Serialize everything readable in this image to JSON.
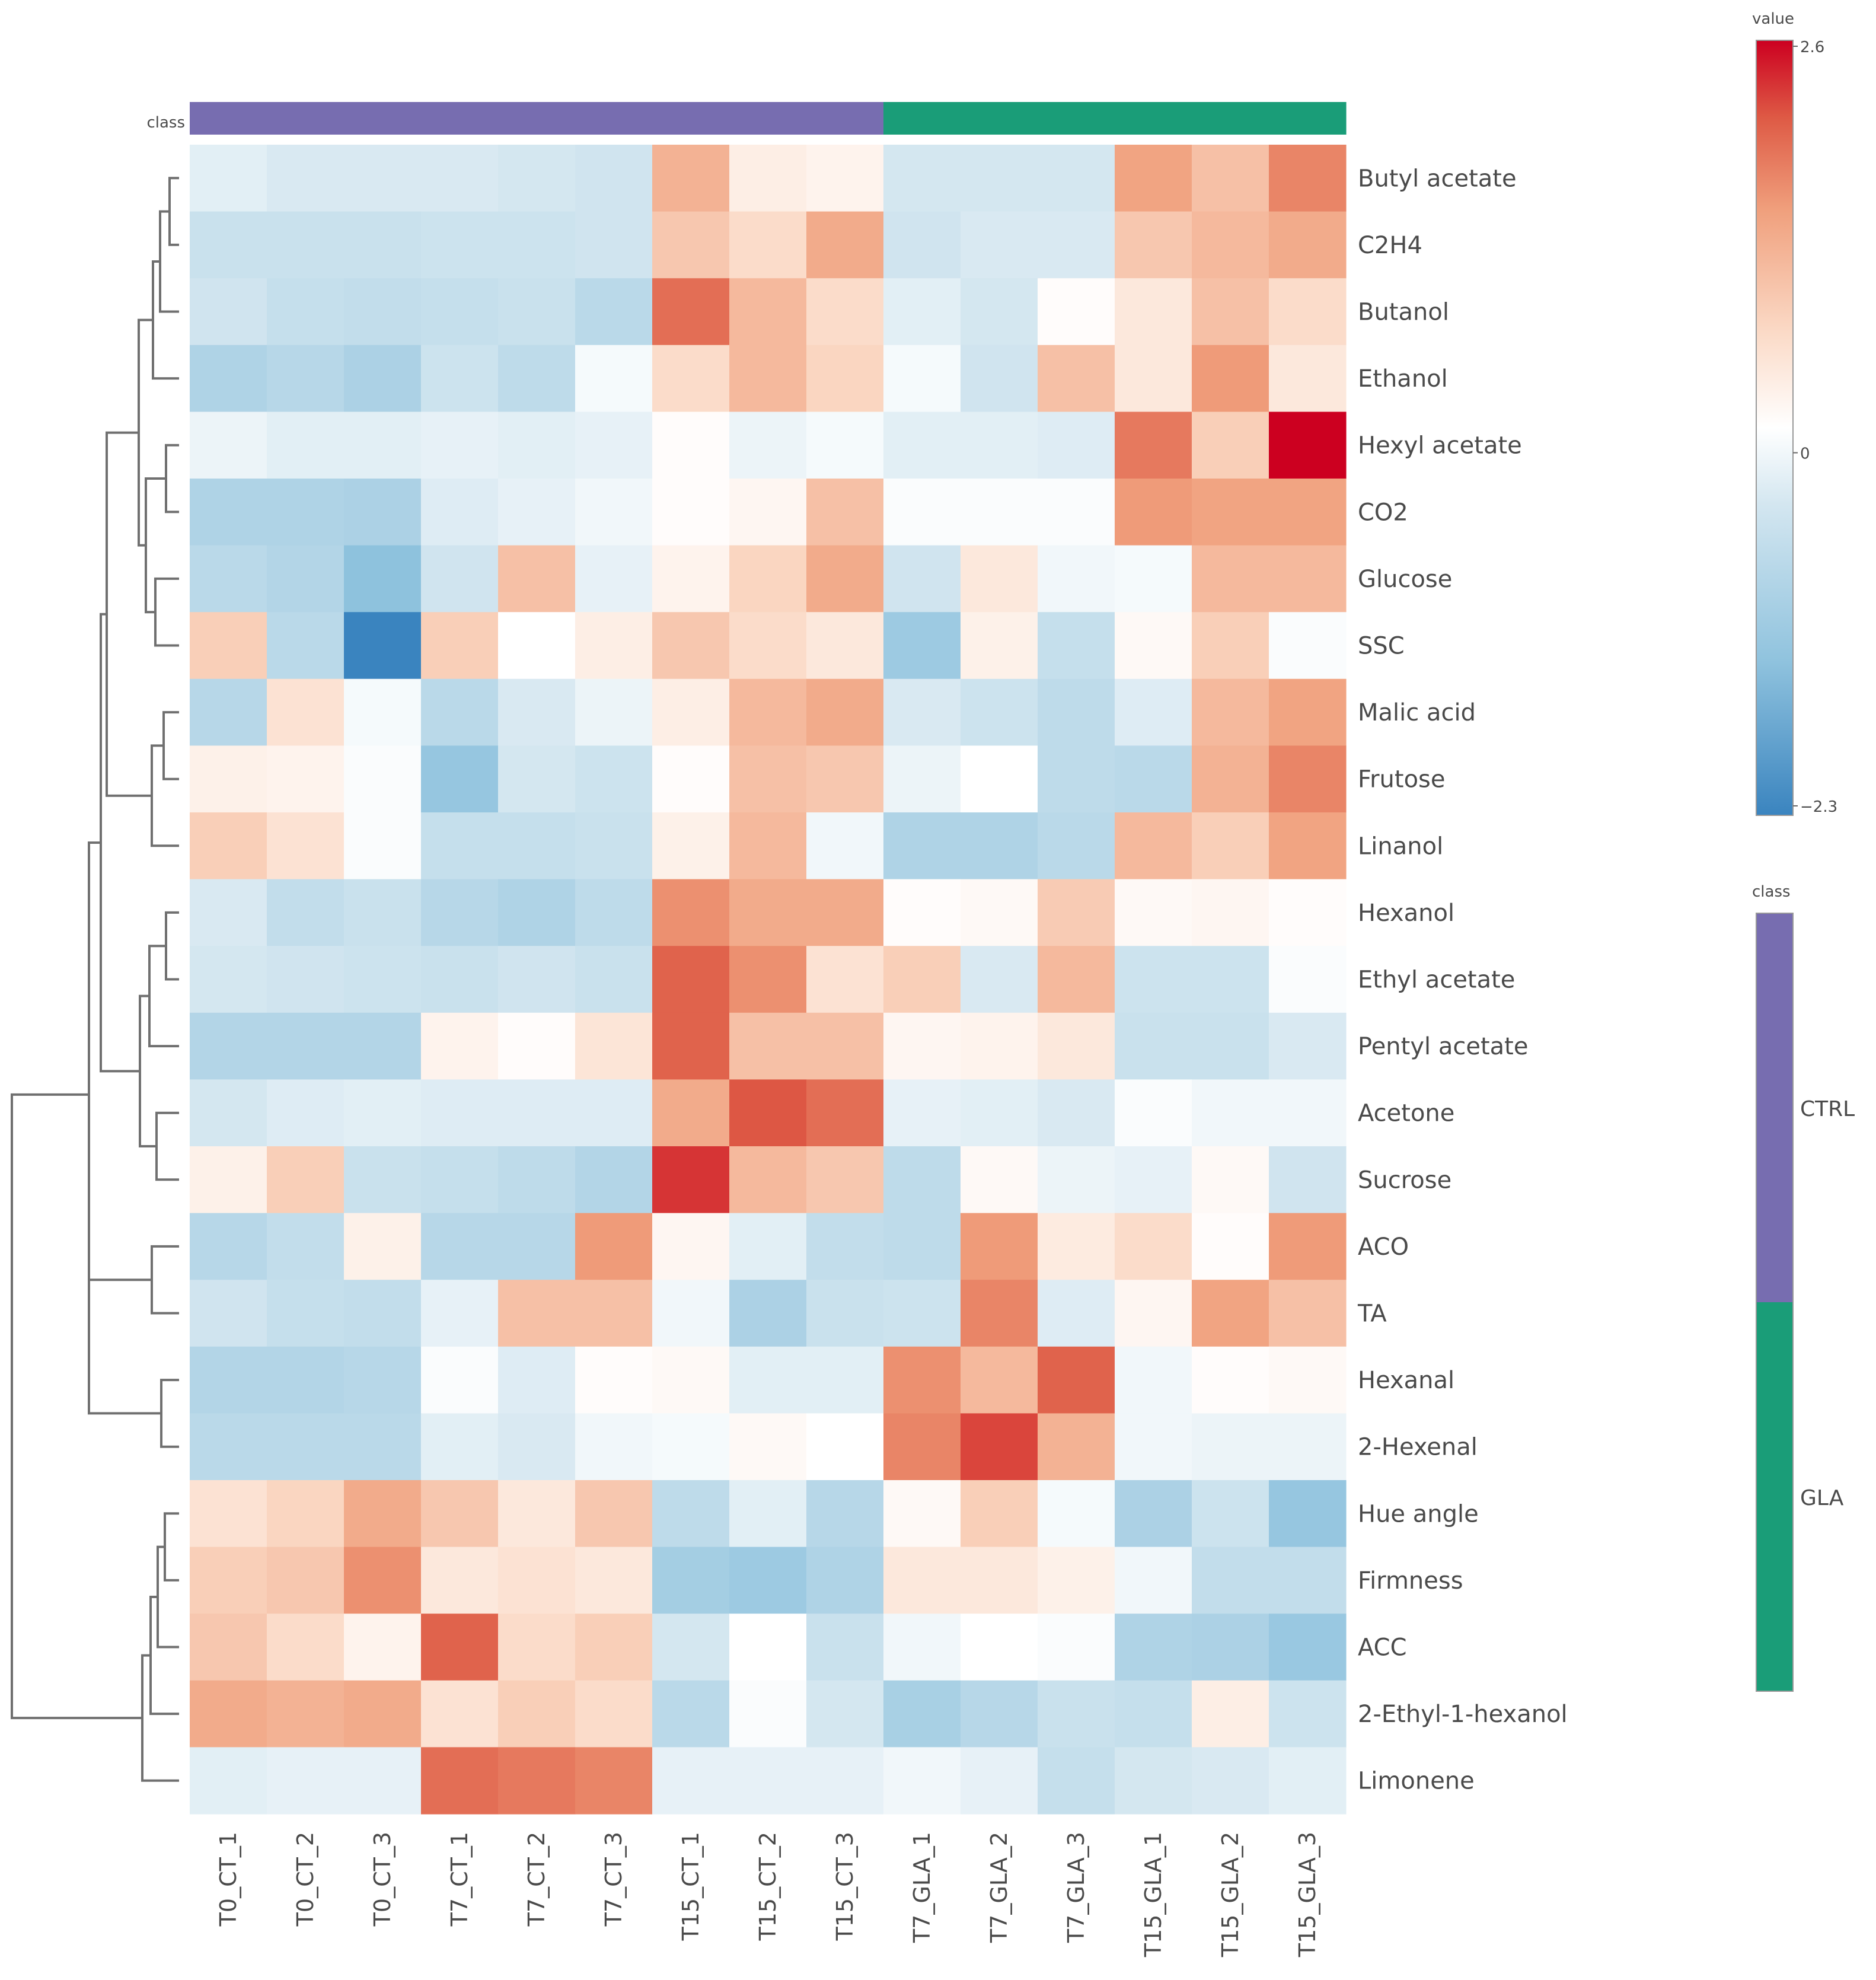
{
  "chart_data": {
    "type": "heatmap",
    "title": "",
    "columns": [
      "T0_CT_1",
      "T0_CT_2",
      "T0_CT_3",
      "T7_CT_1",
      "T7_CT_2",
      "T7_CT_3",
      "T15_CT_1",
      "T15_CT_2",
      "T15_CT_3",
      "T7_GLA_1",
      "T7_GLA_2",
      "T7_GLA_3",
      "T15_GLA_1",
      "T15_GLA_2",
      "T15_GLA_3"
    ],
    "rows": [
      "Butyl acetate",
      "C2H4",
      "Butanol",
      "Ethanol",
      "Hexyl acetate",
      "CO2",
      "Glucose",
      "SSC",
      "Malic acid",
      "Frutose",
      "Linanol",
      "Hexanol",
      "Ethyl acetate",
      "Pentyl acetate",
      "Acetone",
      "Sucrose",
      "ACO",
      "TA",
      "Hexanal",
      "2-Hexenal",
      "Hue angle",
      "Firmness",
      "ACC",
      "2-Ethyl-1-hexanol",
      "Limonene"
    ],
    "values": [
      [
        -0.3,
        -0.4,
        -0.4,
        -0.4,
        -0.45,
        -0.5,
        1.2,
        0.3,
        0.2,
        -0.45,
        -0.45,
        -0.45,
        1.4,
        1.0,
        1.7
      ],
      [
        -0.6,
        -0.6,
        -0.6,
        -0.55,
        -0.55,
        -0.5,
        0.9,
        0.6,
        1.3,
        -0.5,
        -0.4,
        -0.4,
        0.9,
        1.1,
        1.3
      ],
      [
        -0.5,
        -0.65,
        -0.7,
        -0.65,
        -0.6,
        -0.8,
        1.9,
        1.1,
        0.6,
        -0.3,
        -0.45,
        0.05,
        0.4,
        1.0,
        0.6
      ],
      [
        -0.95,
        -0.85,
        -1.0,
        -0.55,
        -0.75,
        -0.1,
        0.6,
        1.1,
        0.7,
        -0.1,
        -0.5,
        1.0,
        0.4,
        1.5,
        0.4
      ],
      [
        -0.2,
        -0.3,
        -0.3,
        -0.25,
        -0.3,
        -0.25,
        0.05,
        -0.2,
        -0.1,
        -0.3,
        -0.3,
        -0.35,
        1.8,
        0.8,
        2.6
      ],
      [
        -0.95,
        -0.95,
        -1.0,
        -0.35,
        -0.25,
        -0.15,
        0.05,
        0.15,
        1.0,
        -0.05,
        -0.05,
        -0.05,
        1.5,
        1.4,
        1.4
      ],
      [
        -0.8,
        -0.9,
        -1.4,
        -0.5,
        1.0,
        -0.25,
        0.2,
        0.7,
        1.3,
        -0.5,
        0.4,
        -0.15,
        -0.1,
        1.1,
        1.1
      ],
      [
        0.8,
        -0.8,
        -2.3,
        0.8,
        0.0,
        0.3,
        0.9,
        0.6,
        0.4,
        -1.2,
        0.25,
        -0.65,
        0.1,
        0.8,
        -0.05
      ],
      [
        -0.85,
        0.5,
        -0.1,
        -0.8,
        -0.4,
        -0.2,
        0.3,
        1.1,
        1.3,
        -0.4,
        -0.55,
        -0.75,
        -0.35,
        1.1,
        1.4
      ],
      [
        0.25,
        0.2,
        -0.05,
        -1.3,
        -0.45,
        -0.55,
        0.05,
        1.0,
        0.9,
        -0.2,
        0.0,
        -0.75,
        -0.8,
        1.2,
        1.7
      ],
      [
        0.8,
        0.5,
        -0.05,
        -0.65,
        -0.65,
        -0.6,
        0.25,
        1.1,
        -0.15,
        -0.95,
        -0.95,
        -0.8,
        1.1,
        0.8,
        1.4
      ],
      [
        -0.4,
        -0.7,
        -0.6,
        -0.85,
        -0.95,
        -0.75,
        1.6,
        1.3,
        1.3,
        0.05,
        0.1,
        0.85,
        0.1,
        0.15,
        0.05
      ],
      [
        -0.45,
        -0.5,
        -0.55,
        -0.6,
        -0.5,
        -0.6,
        2.0,
        1.6,
        0.5,
        0.8,
        -0.4,
        1.1,
        -0.55,
        -0.55,
        -0.05
      ],
      [
        -0.9,
        -0.9,
        -0.9,
        0.2,
        0.05,
        0.45,
        2.0,
        1.0,
        1.0,
        0.15,
        0.2,
        0.4,
        -0.6,
        -0.6,
        -0.4
      ],
      [
        -0.45,
        -0.35,
        -0.3,
        -0.35,
        -0.35,
        -0.35,
        1.3,
        2.1,
        1.9,
        -0.25,
        -0.3,
        -0.4,
        -0.05,
        -0.15,
        -0.15
      ],
      [
        0.25,
        0.8,
        -0.6,
        -0.65,
        -0.75,
        -0.9,
        2.3,
        1.1,
        0.9,
        -0.75,
        0.1,
        -0.2,
        -0.25,
        0.1,
        -0.5
      ],
      [
        -0.85,
        -0.7,
        0.25,
        -0.85,
        -0.85,
        1.5,
        0.15,
        -0.3,
        -0.7,
        -0.75,
        1.5,
        0.35,
        0.6,
        0.05,
        1.5
      ],
      [
        -0.5,
        -0.65,
        -0.7,
        -0.25,
        1.0,
        1.0,
        -0.15,
        -1.0,
        -0.6,
        -0.55,
        1.7,
        -0.35,
        0.15,
        1.4,
        1.0
      ],
      [
        -0.9,
        -0.9,
        -0.85,
        -0.05,
        -0.35,
        0.05,
        0.1,
        -0.3,
        -0.3,
        1.6,
        1.1,
        2.0,
        -0.15,
        0.05,
        0.1
      ],
      [
        -0.8,
        -0.8,
        -0.8,
        -0.3,
        -0.4,
        -0.15,
        -0.1,
        0.1,
        0.0,
        1.7,
        2.2,
        1.2,
        -0.15,
        -0.2,
        -0.2
      ],
      [
        0.5,
        0.7,
        1.3,
        0.9,
        0.4,
        0.9,
        -0.75,
        -0.3,
        -0.85,
        0.1,
        0.8,
        -0.1,
        -1.0,
        -0.55,
        -1.3
      ],
      [
        0.8,
        0.9,
        1.6,
        0.4,
        0.5,
        0.4,
        -1.1,
        -1.2,
        -0.95,
        0.4,
        0.4,
        0.25,
        -0.15,
        -0.7,
        -0.7
      ],
      [
        0.9,
        0.6,
        0.2,
        2.0,
        0.6,
        0.8,
        -0.45,
        0.0,
        -0.6,
        -0.15,
        0.0,
        -0.05,
        -0.95,
        -1.0,
        -1.25
      ],
      [
        1.3,
        1.2,
        1.3,
        0.5,
        0.8,
        0.6,
        -0.8,
        -0.05,
        -0.45,
        -1.05,
        -0.85,
        -0.6,
        -0.65,
        0.3,
        -0.55
      ],
      [
        -0.3,
        -0.25,
        -0.25,
        1.9,
        1.8,
        1.7,
        -0.25,
        -0.25,
        -0.25,
        -0.15,
        -0.25,
        -0.65,
        -0.45,
        -0.4,
        -0.3
      ]
    ],
    "column_classes": [
      "CTRL",
      "CTRL",
      "CTRL",
      "CTRL",
      "CTRL",
      "CTRL",
      "CTRL",
      "CTRL",
      "CTRL",
      "GLA",
      "GLA",
      "GLA",
      "GLA",
      "GLA",
      "GLA"
    ],
    "class_bar_label": "class",
    "colorbar": {
      "title": "value",
      "min": -2.3,
      "max": 2.6,
      "ticks": [
        "2.6",
        "0",
        "−2.3"
      ]
    },
    "class_legend": {
      "title": "class",
      "entries": [
        "CTRL",
        "GLA"
      ]
    },
    "colors": {
      "low": "#3a84bf",
      "mid": "#ffffff",
      "high": "#cc0020",
      "CTRL": "#776db0",
      "GLA": "#1a9d78",
      "dendrogram": "#707070"
    },
    "dendrogram": "hierarchical clustering of rows (drawn as tree on the left)"
  }
}
